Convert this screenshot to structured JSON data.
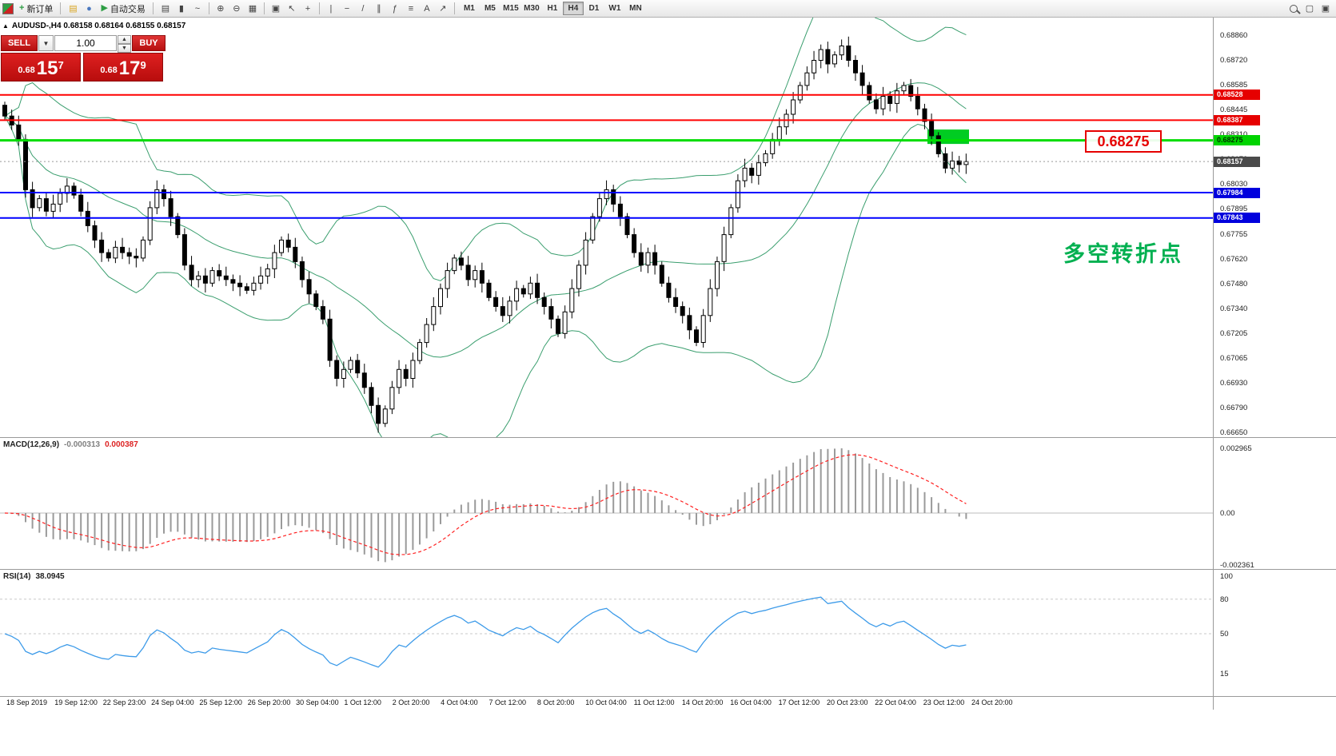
{
  "toolbar": {
    "new_order_label": "新订单",
    "autotrade_label": "自动交易",
    "new_order_glyph": "+",
    "autotrade_glyph": "▶",
    "tools_left": [
      {
        "name": "charts-profile-icon",
        "glyph": "▤",
        "color": "#d9a520"
      },
      {
        "name": "history-center-icon",
        "glyph": "●",
        "color": "#4a78c0"
      }
    ],
    "tools": [
      {
        "name": "bar-chart-icon",
        "glyph": "▤"
      },
      {
        "name": "candlestick-chart-icon",
        "glyph": "▮"
      },
      {
        "name": "line-chart-icon",
        "glyph": "~"
      },
      {
        "sep": true
      },
      {
        "name": "zoom-in-icon",
        "glyph": "⊕"
      },
      {
        "name": "zoom-out-icon",
        "glyph": "⊖"
      },
      {
        "name": "tile-windows-icon",
        "glyph": "▦"
      },
      {
        "sep": true
      },
      {
        "name": "cascade-windows-icon",
        "glyph": "▣"
      },
      {
        "name": "cursor-icon",
        "glyph": "↖"
      },
      {
        "name": "crosshair-icon",
        "glyph": "+"
      },
      {
        "sep": true
      },
      {
        "name": "vertical-line-icon",
        "glyph": "|"
      },
      {
        "name": "horizontal-line-icon",
        "glyph": "−"
      },
      {
        "name": "trendline-icon",
        "glyph": "/"
      },
      {
        "name": "channel-icon",
        "glyph": "∥"
      },
      {
        "name": "fibonacci-icon",
        "glyph": "ƒ"
      },
      {
        "name": "shapes-icon",
        "glyph": "≡"
      },
      {
        "name": "text-icon",
        "glyph": "A"
      },
      {
        "name": "arrow-tools-icon",
        "glyph": "↗"
      },
      {
        "sep": true
      }
    ],
    "timeframes": [
      "M1",
      "M5",
      "M15",
      "M30",
      "H1",
      "H4",
      "D1",
      "W1",
      "MN"
    ],
    "active_timeframe": "H4",
    "right_icons": [
      {
        "name": "search-icon",
        "glyph": "search"
      },
      {
        "name": "new-window-icon",
        "glyph": "▢"
      },
      {
        "name": "chat-icon",
        "glyph": "▣"
      }
    ]
  },
  "one_click": {
    "sell_label": "SELL",
    "buy_label": "BUY",
    "volume": "1.00",
    "dropdown_glyph": "▼",
    "spin_up_glyph": "▲",
    "spin_down_glyph": "▼",
    "sell_price_prefix": "0.68",
    "sell_price_big": "15",
    "sell_price_sup": "7",
    "buy_price_prefix": "0.68",
    "buy_price_big": "17",
    "buy_price_sup": "9"
  },
  "chart": {
    "collapse_glyph": "▲",
    "symbol_info": "AUDUSD-,H4  0.68158 0.68164 0.68155 0.68157",
    "price_axis": [
      "0.68860",
      "0.68720",
      "0.68585",
      "0.68445",
      "0.68310",
      "0.68170",
      "0.68030",
      "0.67895",
      "0.67755",
      "0.67620",
      "0.67480",
      "0.67340",
      "0.67205",
      "0.67065",
      "0.66930",
      "0.66790",
      "0.66650"
    ],
    "price_tags": [
      {
        "text": "0.68528",
        "price": 0.68528,
        "bg": "#e60000",
        "fg": "#ffffff"
      },
      {
        "text": "0.68387",
        "price": 0.68387,
        "bg": "#e60000",
        "fg": "#ffffff"
      },
      {
        "text": "0.68275",
        "price": 0.68275,
        "bg": "#00d400",
        "fg": "#003300"
      },
      {
        "text": "0.68157",
        "price": 0.68157,
        "bg": "#4a4a4a",
        "fg": "#ffffff"
      },
      {
        "text": "0.67984",
        "price": 0.67984,
        "bg": "#0000dd",
        "fg": "#ffffff"
      },
      {
        "text": "0.67843",
        "price": 0.67843,
        "bg": "#0000dd",
        "fg": "#ffffff"
      }
    ],
    "hlines": [
      {
        "price": 0.68528,
        "color": "#ff0000",
        "width": 2,
        "style": "solid"
      },
      {
        "price": 0.68387,
        "color": "#ff0000",
        "width": 2,
        "style": "solid"
      },
      {
        "price": 0.68275,
        "color": "#00dd00",
        "width": 3,
        "style": "solid"
      },
      {
        "price": 0.67984,
        "color": "#0000ff",
        "width": 2,
        "style": "solid"
      },
      {
        "price": 0.67843,
        "color": "#0000ff",
        "width": 2,
        "style": "solid"
      },
      {
        "price": 0.68157,
        "color": "#999999",
        "width": 1,
        "style": "dotted"
      }
    ],
    "zone_rect": {
      "x": 1160,
      "width": 52,
      "price_top": 0.68335,
      "price_bottom": 0.68255,
      "color": "#00cc22"
    },
    "price_label_text": "0.68275",
    "annotation_text": "多空转折点",
    "colors": {
      "bands": "#3a9e6e",
      "bull": "#ffffff",
      "bear": "#000000",
      "accent_green": "#00b050",
      "accent_red": "#e60000",
      "accent_blue": "#0000dd"
    }
  },
  "macd": {
    "name": "MACD(12,26,9)",
    "value_main": "-0.000313",
    "value_signal": "0.000387",
    "axis": [
      "0.002965",
      "0.00",
      "-0.002361"
    ]
  },
  "rsi": {
    "name": "RSI(14)",
    "value": "38.0945",
    "axis": [
      "100",
      "80",
      "50",
      "15"
    ],
    "levels": [
      80,
      50
    ]
  },
  "time_axis": [
    "18 Sep 2019",
    "19 Sep 12:00",
    "22 Sep 23:00",
    "24 Sep 04:00",
    "25 Sep 12:00",
    "26 Sep 20:00",
    "30 Sep 04:00",
    "1 Oct 12:00",
    "2 Oct 20:00",
    "4 Oct 04:00",
    "7 Oct 12:00",
    "8 Oct 20:00",
    "10 Oct 04:00",
    "11 Oct 12:00",
    "14 Oct 20:00",
    "16 Oct 04:00",
    "17 Oct 12:00",
    "20 Oct 23:00",
    "22 Oct 04:00",
    "23 Oct 12:00",
    "24 Oct 20:00"
  ],
  "chart_data": {
    "type": "candlestick",
    "symbol": "AUDUSD",
    "timeframe": "H4",
    "ylim": [
      0.6665,
      0.6886
    ],
    "current_price": 0.68157,
    "overlays": [
      "Bollinger Bands(20,2)"
    ],
    "indicator_panels": [
      "MACD(12,26,9)",
      "RSI(14)"
    ],
    "horizontal_levels": [
      0.68528,
      0.68387,
      0.68275,
      0.67984,
      0.67843
    ],
    "closes": [
      0.6841,
      0.6836,
      0.6828,
      0.68,
      0.679,
      0.6795,
      0.6788,
      0.6792,
      0.6798,
      0.6802,
      0.6797,
      0.6788,
      0.678,
      0.6772,
      0.6765,
      0.6762,
      0.6768,
      0.6765,
      0.6763,
      0.6762,
      0.6772,
      0.679,
      0.68,
      0.6795,
      0.6785,
      0.6775,
      0.6758,
      0.675,
      0.6752,
      0.6748,
      0.6755,
      0.6752,
      0.675,
      0.6748,
      0.6746,
      0.6744,
      0.6748,
      0.6752,
      0.6756,
      0.6765,
      0.6772,
      0.6768,
      0.676,
      0.675,
      0.6742,
      0.6735,
      0.6728,
      0.6705,
      0.6695,
      0.67,
      0.6705,
      0.6698,
      0.669,
      0.668,
      0.667,
      0.6678,
      0.669,
      0.67,
      0.6695,
      0.6705,
      0.6715,
      0.6725,
      0.6735,
      0.6745,
      0.6755,
      0.6762,
      0.6758,
      0.675,
      0.6755,
      0.6748,
      0.674,
      0.6735,
      0.673,
      0.6738,
      0.6745,
      0.6742,
      0.6748,
      0.674,
      0.6735,
      0.6728,
      0.672,
      0.6732,
      0.6745,
      0.6758,
      0.6772,
      0.6785,
      0.6795,
      0.68,
      0.6792,
      0.6785,
      0.6775,
      0.6765,
      0.6758,
      0.6765,
      0.6758,
      0.6748,
      0.674,
      0.6735,
      0.673,
      0.6722,
      0.6715,
      0.673,
      0.6745,
      0.676,
      0.6775,
      0.679,
      0.6805,
      0.6812,
      0.6808,
      0.6815,
      0.682,
      0.6828,
      0.6835,
      0.6842,
      0.685,
      0.6858,
      0.6865,
      0.6872,
      0.6878,
      0.687,
      0.6875,
      0.688,
      0.6872,
      0.6865,
      0.6858,
      0.685,
      0.6845,
      0.6852,
      0.6848,
      0.6855,
      0.6858,
      0.6852,
      0.6845,
      0.6838,
      0.683,
      0.682,
      0.6812,
      0.6816,
      0.6814,
      0.68157
    ]
  }
}
